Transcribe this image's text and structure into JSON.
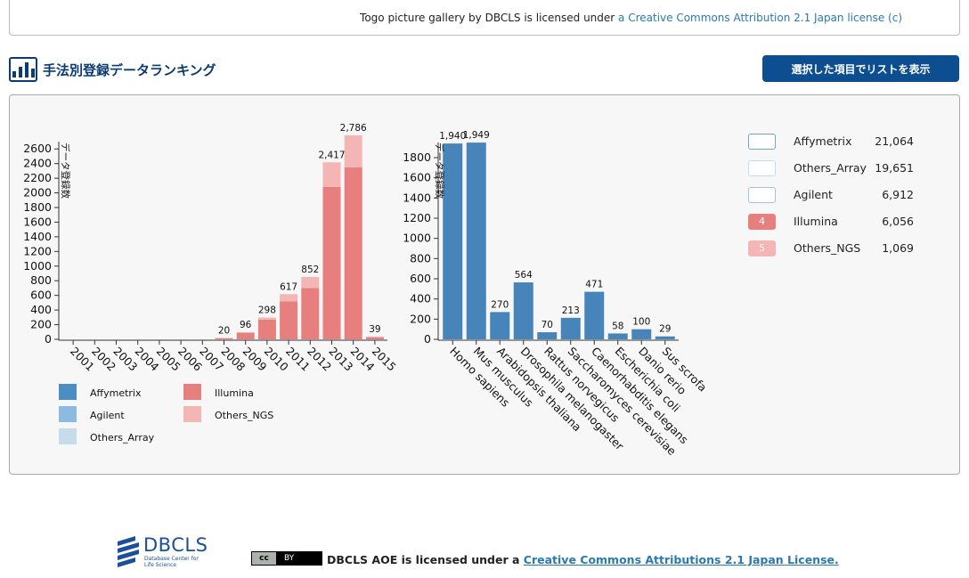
{
  "top_license": {
    "text": "Togo picture gallery by DBCLS is licensed under",
    "link": "a Creative Commons Attribution 2.1 Japan license (c)"
  },
  "section": {
    "title": "手法別登録データランキング",
    "icon": "bar-chart-icon"
  },
  "list_button_label": "選択した項目でリストを表示",
  "colors": {
    "Affymetrix": "#4a8ec4",
    "Agilent": "#8bbcdf",
    "Others_Array": "#c5dcea",
    "Illumina": "#e67f7d",
    "Others_NGS": "#f4b6b4",
    "species_bar": "#4684b9"
  },
  "chart_data": [
    {
      "type": "bar",
      "stacked": true,
      "ylabel": "データ登録数",
      "ylim": [
        0,
        2700
      ],
      "yticks": [
        0,
        200,
        400,
        600,
        800,
        1000,
        1200,
        1400,
        1600,
        1800,
        2000,
        2200,
        2400,
        2600
      ],
      "categories": [
        "2001",
        "2002",
        "2003",
        "2004",
        "2005",
        "2006",
        "2007",
        "2008",
        "2009",
        "2010",
        "2011",
        "2012",
        "2013",
        "2014",
        "2015"
      ],
      "totals": [
        null,
        null,
        null,
        null,
        null,
        null,
        null,
        "20",
        "96",
        "298",
        "617",
        "852",
        "2,417",
        "2,786",
        "39"
      ],
      "series": [
        {
          "name": "Illumina",
          "values": [
            0,
            0,
            0,
            0,
            0,
            0,
            0,
            15,
            90,
            270,
            520,
            700,
            2080,
            2350,
            25
          ]
        },
        {
          "name": "Others_NGS",
          "values": [
            0,
            0,
            0,
            0,
            0,
            0,
            0,
            5,
            6,
            28,
            97,
            152,
            337,
            436,
            14
          ]
        }
      ],
      "legend": [
        "Affymetrix",
        "Illumina",
        "Agilent",
        "Others_NGS",
        "Others_Array"
      ]
    },
    {
      "type": "bar",
      "ylabel": "データ登録数",
      "ylim": [
        0,
        1950
      ],
      "yticks": [
        0,
        200,
        400,
        600,
        800,
        1000,
        1200,
        1400,
        1600,
        1800
      ],
      "categories": [
        "Homo sapiens",
        "Mus musculus",
        "Arabidopsis thaliana",
        "Drosophila melanogaster",
        "Rattus norvegicus",
        "Saccharomyces cerevisiae",
        "Caenorhabditis elegans",
        "Escherichia coli",
        "Danio rerio",
        "Sus scrofa"
      ],
      "values": [
        1940,
        1949,
        270,
        564,
        70,
        213,
        471,
        58,
        100,
        29
      ],
      "labels": [
        "1,940",
        "1,949",
        "270",
        "564",
        "70",
        "213",
        "471",
        "58",
        "100",
        "29"
      ]
    }
  ],
  "method_legend": [
    {
      "name": "Affymetrix",
      "count": "21,064",
      "badge": "",
      "fill": "#ffffff",
      "border": "#6fa6cf"
    },
    {
      "name": "Others_Array",
      "count": "19,651",
      "badge": "",
      "fill": "#ffffff",
      "border": "#c5dcea"
    },
    {
      "name": "Agilent",
      "count": "6,912",
      "badge": "",
      "fill": "#ffffff",
      "border": "#9cc6e4"
    },
    {
      "name": "Illumina",
      "count": "6,056",
      "badge": "4",
      "fill": "#e67f7d",
      "border": "#e67f7d"
    },
    {
      "name": "Others_NGS",
      "count": "1,069",
      "badge": "5",
      "fill": "#f4b6b4",
      "border": "#f4b6b4"
    }
  ],
  "footer": {
    "logo_text": "DBCLS",
    "logo_sub": "Database Center for Life Science",
    "cc_left": "cc",
    "cc_right": "BY",
    "license_text": "DBCLS AOE is licensed under a",
    "license_link": "Creative Commons Attributions 2.1 Japan License."
  }
}
